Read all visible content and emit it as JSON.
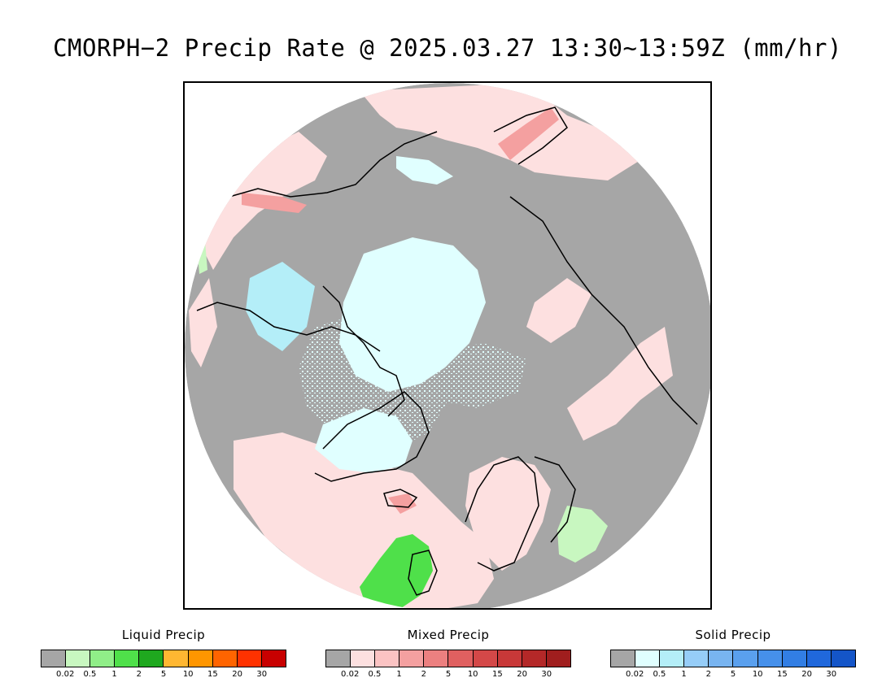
{
  "title": "CMORPH−2 Precip Rate @ 2025.03.27 13:30~13:59Z (mm/hr)",
  "legends": [
    {
      "title": "Liquid Precip",
      "colors": [
        "#a6a6a6",
        "#c8f7c0",
        "#90ee88",
        "#4fe04a",
        "#1fa81f",
        "#ffb732",
        "#ff9600",
        "#ff6400",
        "#ff3200",
        "#c80000"
      ],
      "ticks": [
        "0.02",
        "0.5",
        "1",
        "2",
        "5",
        "10",
        "15",
        "20",
        "30"
      ]
    },
    {
      "title": "Mixed Precip",
      "colors": [
        "#a6a6a6",
        "#fde0e0",
        "#fbc3c3",
        "#f4a0a0",
        "#ec8080",
        "#e06060",
        "#d44848",
        "#c83838",
        "#b42828",
        "#a01e1e"
      ],
      "ticks": [
        "0.02",
        "0.5",
        "1",
        "2",
        "5",
        "10",
        "15",
        "20",
        "30"
      ]
    },
    {
      "title": "Solid Precip",
      "colors": [
        "#a6a6a6",
        "#e0ffff",
        "#b4eef8",
        "#96cdf8",
        "#78b4f0",
        "#5aa0ee",
        "#4690ea",
        "#327ee4",
        "#2068dc",
        "#1455c8"
      ],
      "ticks": [
        "0.02",
        "0.5",
        "1",
        "2",
        "5",
        "10",
        "15",
        "20",
        "30"
      ]
    }
  ],
  "map_colors": {
    "no_precip": "#a6a6a6",
    "mixed_light": "#fde0e0",
    "mixed_medium": "#f4a0a0",
    "solid_light": "#e0ffff",
    "solid_medium": "#b4eef8",
    "liquid_light": "#c8f7c0",
    "liquid_medium": "#4fe04a",
    "coastline": "#000000"
  }
}
